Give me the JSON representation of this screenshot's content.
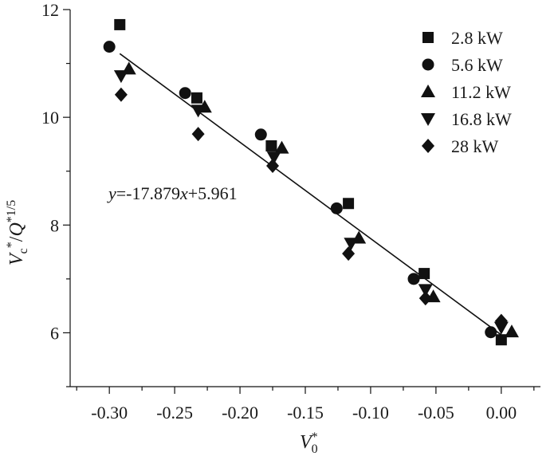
{
  "chart_data": {
    "type": "scatter",
    "xlabel": {
      "base": "V",
      "sup": "*",
      "sub": "0"
    },
    "ylabel": {
      "v": "V",
      "vsub": "c",
      "star": "*",
      "slash": "/",
      "q": "Q",
      "qsup": "*1/5"
    },
    "xlim": [
      -0.33,
      0.03
    ],
    "ylim": [
      5,
      12
    ],
    "xticks": [
      -0.3,
      -0.25,
      -0.2,
      -0.15,
      -0.1,
      -0.05,
      0.0
    ],
    "xtick_labels": [
      "-0.30",
      "-0.25",
      "-0.20",
      "-0.15",
      "-0.10",
      "-0.05",
      "0.00"
    ],
    "yticks": [
      6,
      8,
      10,
      12
    ],
    "ytick_labels": [
      "6",
      "8",
      "10",
      "12"
    ],
    "grid": false,
    "legend_position": "top-right",
    "fit": {
      "slope": -17.879,
      "intercept": 5.961,
      "x_range": [
        -0.292,
        0.0
      ],
      "label_parts": {
        "y": "y",
        "mid": "=-17.879",
        "x": "x",
        "end": "+5.961"
      }
    },
    "series": [
      {
        "name": "2.8 kW",
        "marker": "square",
        "points": [
          [
            -0.292,
            11.72
          ],
          [
            -0.233,
            10.36
          ],
          [
            -0.176,
            9.47
          ],
          [
            -0.117,
            8.4
          ],
          [
            -0.059,
            7.1
          ],
          [
            0.0,
            5.87
          ]
        ]
      },
      {
        "name": "5.6 kW",
        "marker": "circle",
        "points": [
          [
            -0.3,
            11.31
          ],
          [
            -0.242,
            10.45
          ],
          [
            -0.184,
            9.68
          ],
          [
            -0.126,
            8.31
          ],
          [
            -0.067,
            7.0
          ],
          [
            -0.008,
            6.01
          ]
        ]
      },
      {
        "name": "11.2 kW",
        "marker": "triangle-up",
        "points": [
          [
            -0.285,
            10.9
          ],
          [
            -0.227,
            10.19
          ],
          [
            -0.168,
            9.43
          ],
          [
            -0.109,
            7.76
          ],
          [
            -0.052,
            6.67
          ],
          [
            0.008,
            6.02
          ]
        ]
      },
      {
        "name": "16.8 kW",
        "marker": "triangle-down",
        "points": [
          [
            -0.291,
            10.77
          ],
          [
            -0.232,
            10.13
          ],
          [
            -0.174,
            9.26
          ],
          [
            -0.115,
            7.66
          ],
          [
            -0.058,
            6.8
          ],
          [
            0.0,
            6.1
          ]
        ]
      },
      {
        "name": "28 kW",
        "marker": "diamond",
        "points": [
          [
            -0.291,
            10.42
          ],
          [
            -0.232,
            9.69
          ],
          [
            -0.175,
            9.1
          ],
          [
            -0.117,
            7.47
          ],
          [
            -0.058,
            6.64
          ],
          [
            0.0,
            6.22
          ]
        ]
      }
    ]
  }
}
